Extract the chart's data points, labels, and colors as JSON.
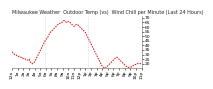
{
  "title": "Milwaukee Weather  Outdoor Temp (vs)  Wind Chill per Minute (Last 24 Hours)",
  "bg_color": "#ffffff",
  "line_color": "#dd0000",
  "vline_color": "#bbbbbb",
  "y_ticks": [
    20,
    25,
    30,
    35,
    40,
    45,
    50,
    55,
    60,
    65,
    70
  ],
  "ylim": [
    15,
    72
  ],
  "data_y": [
    33,
    32,
    31,
    30,
    30,
    29,
    29,
    28,
    28,
    27,
    27,
    26,
    26,
    25,
    25,
    25,
    24,
    24,
    24,
    25,
    22,
    21,
    20,
    20,
    21,
    22,
    24,
    26,
    28,
    30,
    32,
    34,
    36,
    38,
    40,
    42,
    44,
    46,
    47,
    48,
    50,
    52,
    54,
    55,
    56,
    57,
    58,
    59,
    60,
    61,
    62,
    63,
    64,
    64,
    65,
    65,
    66,
    67,
    67,
    66,
    65,
    65,
    66,
    66,
    65,
    64,
    63,
    62,
    61,
    61,
    62,
    63,
    63,
    62,
    61,
    60,
    59,
    58,
    57,
    56,
    55,
    54,
    52,
    50,
    48,
    46,
    44,
    42,
    40,
    38,
    36,
    34,
    32,
    30,
    28,
    26,
    24,
    22,
    20,
    18,
    17,
    16,
    16,
    15,
    16,
    17,
    18,
    19,
    20,
    21,
    22,
    23,
    24,
    25,
    26,
    27,
    27,
    26,
    25,
    24,
    23,
    22,
    21,
    20,
    19,
    18,
    17,
    17,
    16,
    16,
    16,
    16,
    17,
    17,
    18,
    18,
    19,
    19,
    20,
    20,
    20,
    20,
    20,
    20
  ],
  "vline_positions": [
    36,
    84
  ],
  "title_fontsize": 3.5,
  "tick_fontsize": 3.2,
  "x_labels": [
    "12a",
    "1a",
    "2a",
    "3a",
    "4a",
    "5a",
    "6a",
    "7a",
    "8a",
    "9a",
    "10a",
    "11a",
    "12p",
    "1p",
    "2p",
    "3p",
    "4p",
    "5p",
    "6p",
    "7p",
    "8p",
    "9p",
    "10p",
    "11p"
  ]
}
